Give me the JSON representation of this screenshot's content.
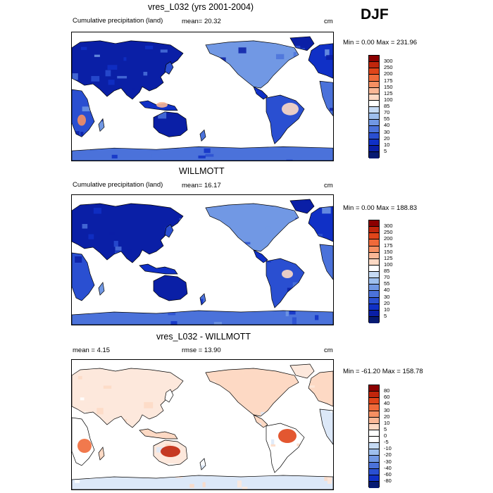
{
  "season": "DJF",
  "units_label": "cm",
  "panels": [
    {
      "title": "vres_L032 (yrs 2001-2004)",
      "left_label": "Cumulative precipitation (land)",
      "center_label": "mean=  20.32",
      "right_label": "cm",
      "minmax": "Min =   0.00 Max = 231.96",
      "colorbar_labels": [
        "300",
        "250",
        "200",
        "175",
        "150",
        "125",
        "100",
        "85",
        "70",
        "55",
        "40",
        "30",
        "20",
        "10",
        "5"
      ],
      "colorbar_colors": [
        "#8b0000",
        "#c0260c",
        "#e0451a",
        "#ef6a3a",
        "#f58f62",
        "#f9b796",
        "#fdd9c4",
        "#ffffff",
        "#c6dbf5",
        "#9ebfee",
        "#7198e4",
        "#4b72da",
        "#2a4fd1",
        "#1030c6",
        "#0a1fa6",
        "#061a72"
      ],
      "ocean_color": "#ffffff",
      "land_palette": [
        "#0a1fa6",
        "#1030c6",
        "#2a4fd1",
        "#4b72da",
        "#7198e4"
      ],
      "hot_palette": [
        "#fdd9c4",
        "#f9b796",
        "#f58f62"
      ]
    },
    {
      "title": "WILLMOTT",
      "left_label": "Cumulative precipitation (land)",
      "center_label": "mean=  16.17",
      "right_label": "cm",
      "minmax": "Min =   0.00 Max = 188.83",
      "colorbar_labels": [
        "300",
        "250",
        "200",
        "175",
        "150",
        "125",
        "100",
        "85",
        "70",
        "55",
        "40",
        "30",
        "20",
        "10",
        "5"
      ],
      "colorbar_colors": [
        "#8b0000",
        "#c0260c",
        "#e0451a",
        "#ef6a3a",
        "#f58f62",
        "#f9b796",
        "#fdd9c4",
        "#ffffff",
        "#c6dbf5",
        "#9ebfee",
        "#7198e4",
        "#4b72da",
        "#2a4fd1",
        "#1030c6",
        "#0a1fa6",
        "#061a72"
      ],
      "ocean_color": "#ffffff",
      "land_palette": [
        "#0a1fa6",
        "#1030c6",
        "#2a4fd1",
        "#4b72da",
        "#7198e4"
      ],
      "hot_palette": [
        "#fdd9c4",
        "#f9b796"
      ]
    },
    {
      "title": "vres_L032 - WILLMOTT",
      "left_label": "mean =   4.15",
      "center_label": "rmse =  13.90",
      "right_label": "cm",
      "minmax": "Min = -61.20 Max = 158.78",
      "colorbar_labels": [
        "80",
        "60",
        "40",
        "30",
        "20",
        "10",
        "5",
        "0",
        "-5",
        "-10",
        "-20",
        "-30",
        "-40",
        "-60",
        "-80"
      ],
      "colorbar_colors": [
        "#8b0000",
        "#c0260c",
        "#e0451a",
        "#ef6a3a",
        "#f58f62",
        "#f9b796",
        "#fdd9c4",
        "#ffffff",
        "#ffffff",
        "#c6dbf5",
        "#9ebfee",
        "#7198e4",
        "#4b72da",
        "#2a4fd1",
        "#1030c6",
        "#061a72"
      ],
      "ocean_color": "#ffffff",
      "land_palette": [
        "#fde8dc",
        "#fdd9c4",
        "#ffffff",
        "#dce8f8",
        "#fdd9c4"
      ],
      "hot_palette": [
        "#e0451a",
        "#ef6a3a",
        "#c0260c"
      ]
    }
  ]
}
